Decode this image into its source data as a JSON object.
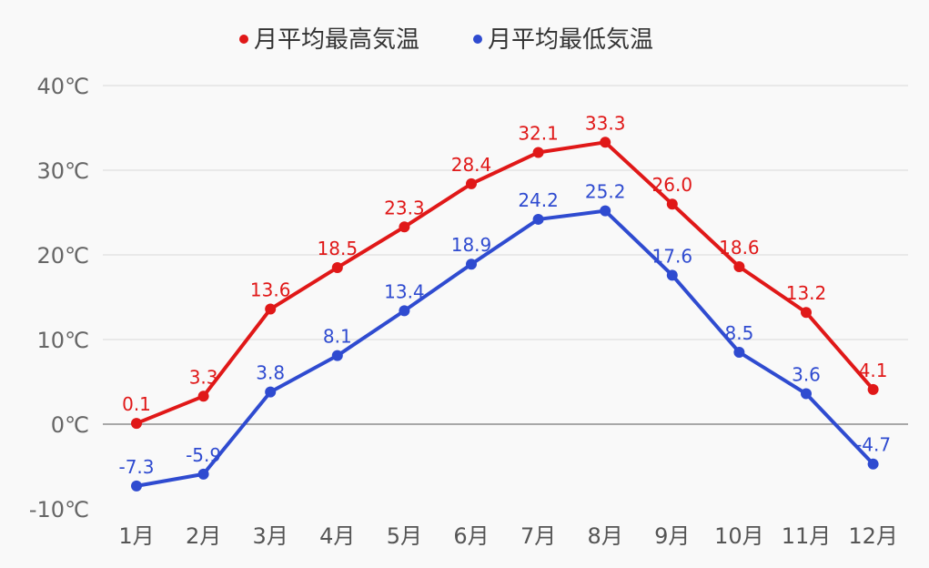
{
  "chart_data": {
    "type": "line",
    "title": "",
    "categories": [
      "1月",
      "2月",
      "3月",
      "4月",
      "5月",
      "6月",
      "7月",
      "8月",
      "9月",
      "10月",
      "11月",
      "12月"
    ],
    "ylim": [
      -10,
      40
    ],
    "yticks": [
      "-10℃",
      "0℃",
      "10℃",
      "20℃",
      "30℃",
      "40℃"
    ],
    "ytick_values": [
      -10,
      0,
      10,
      20,
      30,
      40
    ],
    "legend_position": "top-center",
    "grid": true,
    "series": [
      {
        "name": "月平均最高気温",
        "color": "#e01818",
        "values": [
          0.1,
          3.3,
          13.6,
          18.5,
          23.3,
          28.4,
          32.1,
          33.3,
          26.0,
          18.6,
          13.2,
          4.1
        ],
        "labels": [
          "0.1",
          "3.3",
          "13.6",
          "18.5",
          "23.3",
          "28.4",
          "32.1",
          "33.3",
          "26.0",
          "18.6",
          "13.2",
          "4.1"
        ]
      },
      {
        "name": "月平均最低気温",
        "color": "#2f4bd0",
        "values": [
          -7.3,
          -5.9,
          3.8,
          8.1,
          13.4,
          18.9,
          24.2,
          25.2,
          17.6,
          8.5,
          3.6,
          -4.7
        ],
        "labels": [
          "-7.3",
          "-5.9",
          "3.8",
          "8.1",
          "13.4",
          "18.9",
          "24.2",
          "25.2",
          "17.6",
          "8.5",
          "3.6",
          "-4.7"
        ]
      }
    ]
  }
}
